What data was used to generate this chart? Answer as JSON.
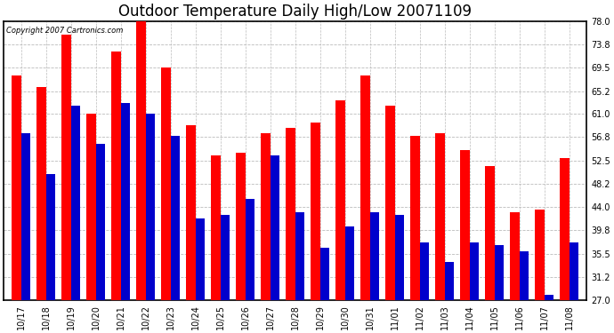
{
  "title": "Outdoor Temperature Daily High/Low 20071109",
  "copyright_text": "Copyright 2007 Cartronics.com",
  "dates": [
    "10/17",
    "10/18",
    "10/19",
    "10/20",
    "10/21",
    "10/22",
    "10/23",
    "10/24",
    "10/25",
    "10/26",
    "10/27",
    "10/28",
    "10/29",
    "10/30",
    "10/31",
    "11/01",
    "11/02",
    "11/03",
    "11/04",
    "11/05",
    "11/06",
    "11/07",
    "11/08"
  ],
  "highs": [
    68.0,
    66.0,
    75.5,
    61.0,
    72.5,
    78.0,
    69.5,
    59.0,
    53.5,
    54.0,
    57.5,
    58.5,
    59.5,
    63.5,
    68.0,
    62.5,
    57.0,
    57.5,
    54.5,
    51.5,
    43.0,
    43.5,
    53.0
  ],
  "lows": [
    57.5,
    50.0,
    62.5,
    55.5,
    63.0,
    61.0,
    57.0,
    42.0,
    42.5,
    45.5,
    53.5,
    43.0,
    36.5,
    40.5,
    43.0,
    42.5,
    37.5,
    34.0,
    37.5,
    37.0,
    36.0,
    28.0,
    37.5
  ],
  "high_color": "#ff0000",
  "low_color": "#0000cc",
  "bg_color": "#ffffff",
  "plot_bg_color": "#ffffff",
  "ylim": [
    27.0,
    78.0
  ],
  "ymin": 27.0,
  "yticks": [
    27.0,
    31.2,
    35.5,
    39.8,
    44.0,
    48.2,
    52.5,
    56.8,
    61.0,
    65.2,
    69.5,
    73.8,
    78.0
  ],
  "grid_color": "#bbbbbb",
  "title_fontsize": 12,
  "tick_fontsize": 7,
  "bar_width": 0.38
}
